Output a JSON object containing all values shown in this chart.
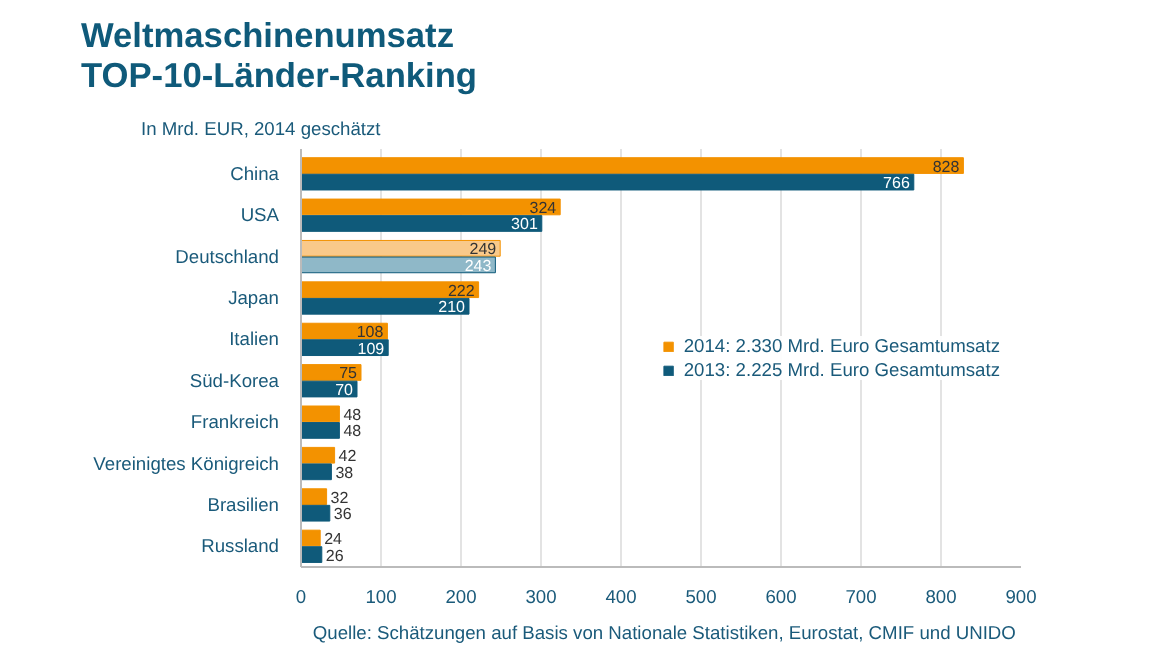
{
  "chart_data": {
    "type": "bar",
    "orientation": "horizontal",
    "title": "Weltmaschinenumsatz\nTOP-10-Länder-Ranking",
    "subtitle": "In Mrd. EUR, 2014 geschätzt",
    "categories": [
      "China",
      "USA",
      "Deutschland",
      "Japan",
      "Italien",
      "Süd-Korea",
      "Frankreich",
      "Vereinigtes Königreich",
      "Brasilien",
      "Russland"
    ],
    "series": [
      {
        "name": "2014: 2.330 Mrd. Euro Gesamtumsatz",
        "color": "#f39200",
        "colors": [
          "#f39200",
          "#f39200",
          "#f9c98a",
          "#f39200",
          "#f39200",
          "#f39200",
          "#f39200",
          "#f39200",
          "#f39200",
          "#f39200"
        ],
        "values": [
          828,
          324,
          249,
          222,
          108,
          75,
          48,
          42,
          32,
          24
        ]
      },
      {
        "name": "2013: 2.225 Mrd. Euro Gesamtumsatz",
        "color": "#0f5a7a",
        "colors": [
          "#0f5a7a",
          "#0f5a7a",
          "#8fb8c8",
          "#0f5a7a",
          "#0f5a7a",
          "#0f5a7a",
          "#0f5a7a",
          "#0f5a7a",
          "#0f5a7a",
          "#0f5a7a"
        ],
        "values": [
          766,
          301,
          243,
          210,
          109,
          70,
          48,
          38,
          36,
          26
        ]
      }
    ],
    "xlim": [
      0,
      900
    ],
    "xticks": [
      0,
      100,
      200,
      300,
      400,
      500,
      600,
      700,
      800,
      900
    ],
    "grid": "x",
    "legend": "right",
    "data_labels": true,
    "annotations": [
      "Quelle:  Schätzungen auf Basis von Nationale Statistiken, Eurostat, CMIF und UNIDO"
    ]
  }
}
